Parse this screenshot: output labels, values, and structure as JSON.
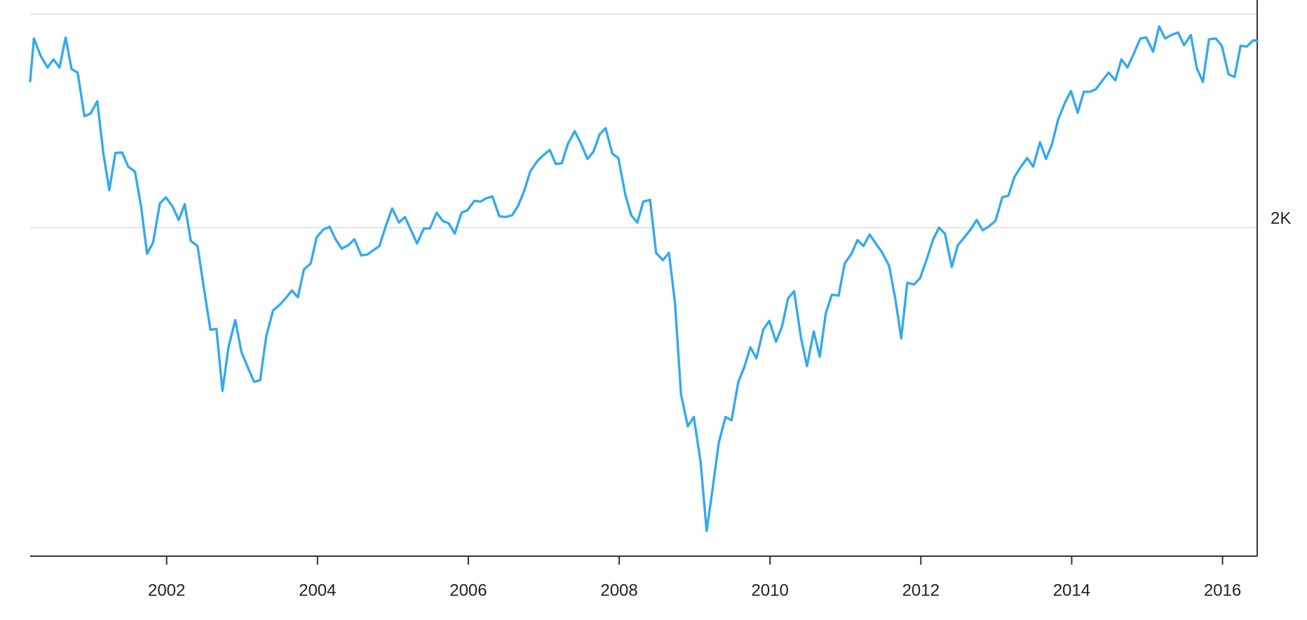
{
  "chart_data": {
    "type": "line",
    "x": [
      2000.19,
      2000.24,
      2000.33,
      2000.42,
      2000.5,
      2000.58,
      2000.66,
      2000.74,
      2000.82,
      2000.91,
      2000.99,
      2001.08,
      2001.16,
      2001.24,
      2001.32,
      2001.41,
      2001.49,
      2001.58,
      2001.66,
      2001.74,
      2001.82,
      2001.91,
      2001.99,
      2002.08,
      2002.16,
      2002.24,
      2002.32,
      2002.41,
      2002.49,
      2002.58,
      2002.66,
      2002.74,
      2002.82,
      2002.91,
      2002.99,
      2003.08,
      2003.16,
      2003.24,
      2003.32,
      2003.41,
      2003.49,
      2003.58,
      2003.66,
      2003.74,
      2003.82,
      2003.91,
      2003.99,
      2004.08,
      2004.16,
      2004.24,
      2004.32,
      2004.41,
      2004.49,
      2004.58,
      2004.66,
      2004.74,
      2004.82,
      2004.91,
      2004.99,
      2005.08,
      2005.16,
      2005.24,
      2005.32,
      2005.41,
      2005.49,
      2005.58,
      2005.66,
      2005.74,
      2005.82,
      2005.91,
      2005.99,
      2006.08,
      2006.16,
      2006.24,
      2006.32,
      2006.41,
      2006.49,
      2006.58,
      2006.66,
      2006.74,
      2006.82,
      2006.91,
      2006.99,
      2007.08,
      2007.16,
      2007.24,
      2007.32,
      2007.41,
      2007.49,
      2007.58,
      2007.66,
      2007.74,
      2007.82,
      2007.91,
      2007.99,
      2008.08,
      2008.16,
      2008.24,
      2008.32,
      2008.41,
      2008.49,
      2008.58,
      2008.66,
      2008.74,
      2008.82,
      2008.91,
      2008.99,
      2009.08,
      2009.16,
      2009.24,
      2009.32,
      2009.41,
      2009.49,
      2009.58,
      2009.66,
      2009.74,
      2009.82,
      2009.91,
      2009.99,
      2010.08,
      2010.16,
      2010.24,
      2010.32,
      2010.41,
      2010.49,
      2010.58,
      2010.66,
      2010.74,
      2010.82,
      2010.91,
      2010.99,
      2011.08,
      2011.16,
      2011.24,
      2011.32,
      2011.41,
      2011.49,
      2011.58,
      2011.66,
      2011.74,
      2011.82,
      2011.91,
      2011.99,
      2012.08,
      2012.16,
      2012.24,
      2012.32,
      2012.41,
      2012.49,
      2012.58,
      2012.66,
      2012.74,
      2012.82,
      2012.91,
      2012.99,
      2013.08,
      2013.16,
      2013.24,
      2013.32,
      2013.41,
      2013.49,
      2013.58,
      2013.66,
      2013.74,
      2013.82,
      2013.91,
      2013.99,
      2014.08,
      2014.16,
      2014.24,
      2014.32,
      2014.41,
      2014.49,
      2014.58,
      2014.66,
      2014.74,
      2014.82,
      2014.91,
      2014.99,
      2015.08,
      2015.16,
      2015.24,
      2015.32,
      2015.41,
      2015.49,
      2015.58,
      2015.66,
      2015.74,
      2015.82,
      2015.91,
      2015.99,
      2016.08,
      2016.16,
      2016.24,
      2016.32,
      2016.41,
      2016.46
    ],
    "series": [
      {
        "color": "#33a9f0",
        "values": [
          2343,
          2443,
          2402,
          2375,
          2394,
          2375,
          2445,
          2371,
          2363,
          2261,
          2267,
          2296,
          2175,
          2088,
          2175,
          2176,
          2143,
          2131,
          2051,
          1939,
          1965,
          2057,
          2071,
          2049,
          2018,
          2055,
          1969,
          1957,
          1863,
          1761,
          1763,
          1618,
          1720,
          1784,
          1710,
          1671,
          1639,
          1643,
          1745,
          1806,
          1818,
          1835,
          1853,
          1837,
          1902,
          1916,
          1978,
          1996,
          2002,
          1973,
          1951,
          1959,
          1973,
          1935,
          1937,
          1947,
          1957,
          2006,
          2045,
          2012,
          2025,
          1994,
          1963,
          1998,
          1998,
          2035,
          2016,
          2010,
          1986,
          2035,
          2041,
          2063,
          2061,
          2069,
          2073,
          2027,
          2025,
          2029,
          2051,
          2086,
          2131,
          2155,
          2169,
          2182,
          2149,
          2151,
          2196,
          2226,
          2198,
          2161,
          2178,
          2218,
          2233,
          2173,
          2163,
          2078,
          2029,
          2012,
          2061,
          2065,
          1941,
          1924,
          1941,
          1824,
          1610,
          1535,
          1557,
          1451,
          1290,
          1390,
          1496,
          1557,
          1549,
          1639,
          1674,
          1720,
          1694,
          1761,
          1782,
          1733,
          1769,
          1835,
          1851,
          1743,
          1676,
          1757,
          1698,
          1800,
          1843,
          1841,
          1916,
          1939,
          1971,
          1957,
          1984,
          1961,
          1941,
          1910,
          1835,
          1741,
          1871,
          1867,
          1882,
          1927,
          1971,
          2000,
          1986,
          1908,
          1959,
          1978,
          1996,
          2018,
          1994,
          2004,
          2016,
          2071,
          2075,
          2118,
          2141,
          2163,
          2143,
          2200,
          2161,
          2196,
          2253,
          2292,
          2320,
          2269,
          2318,
          2318,
          2324,
          2345,
          2363,
          2345,
          2394,
          2375,
          2406,
          2443,
          2445,
          2412,
          2471,
          2443,
          2451,
          2457,
          2427,
          2451,
          2373,
          2341,
          2441,
          2443,
          2426,
          2359,
          2353,
          2426,
          2424,
          2439,
          2437
        ]
      }
    ],
    "xlim": [
      2000.19,
      2016.46
    ],
    "xticks": [
      2002,
      2004,
      2006,
      2008,
      2010,
      2012,
      2014,
      2016
    ],
    "ylim": [
      1231,
      2533
    ],
    "yticks": [
      {
        "value": 2000,
        "label": "2K"
      },
      {
        "value": 2500,
        "label": null
      }
    ],
    "grid": true
  }
}
